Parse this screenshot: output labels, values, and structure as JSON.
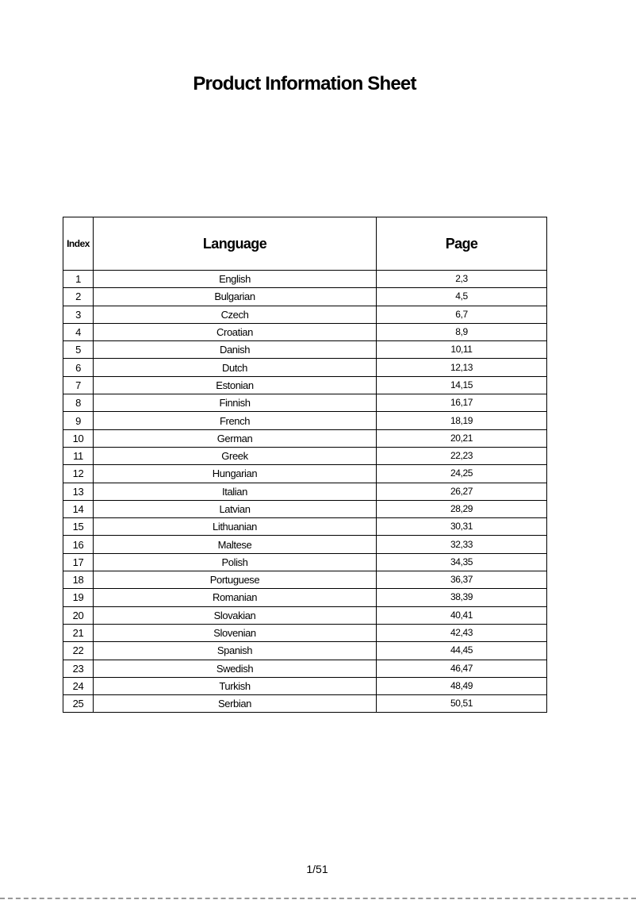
{
  "title": "Product Information Sheet",
  "table": {
    "headers": {
      "index": "Index",
      "language": "Language",
      "page": "Page"
    },
    "rows": [
      [
        "1",
        "English",
        "2,3"
      ],
      [
        "2",
        "Bulgarian",
        "4,5"
      ],
      [
        "3",
        "Czech",
        "6,7"
      ],
      [
        "4",
        "Croatian",
        "8,9"
      ],
      [
        "5",
        "Danish",
        "10,11"
      ],
      [
        "6",
        "Dutch",
        "12,13"
      ],
      [
        "7",
        "Estonian",
        "14,15"
      ],
      [
        "8",
        "Finnish",
        "16,17"
      ],
      [
        "9",
        "French",
        "18,19"
      ],
      [
        "10",
        "German",
        "20,21"
      ],
      [
        "11",
        "Greek",
        "22,23"
      ],
      [
        "12",
        "Hungarian",
        "24,25"
      ],
      [
        "13",
        "Italian",
        "26,27"
      ],
      [
        "14",
        "Latvian",
        "28,29"
      ],
      [
        "15",
        "Lithuanian",
        "30,31"
      ],
      [
        "16",
        "Maltese",
        "32,33"
      ],
      [
        "17",
        "Polish",
        "34,35"
      ],
      [
        "18",
        "Portuguese",
        "36,37"
      ],
      [
        "19",
        "Romanian",
        "38,39"
      ],
      [
        "20",
        "Slovakian",
        "40,41"
      ],
      [
        "21",
        "Slovenian",
        "42,43"
      ],
      [
        "22",
        "Spanish",
        "44,45"
      ],
      [
        "23",
        "Swedish",
        "46,47"
      ],
      [
        "24",
        "Turkish",
        "48,49"
      ],
      [
        "25",
        "Serbian",
        "50,51"
      ]
    ]
  },
  "footer": {
    "page_number": "1/51"
  }
}
